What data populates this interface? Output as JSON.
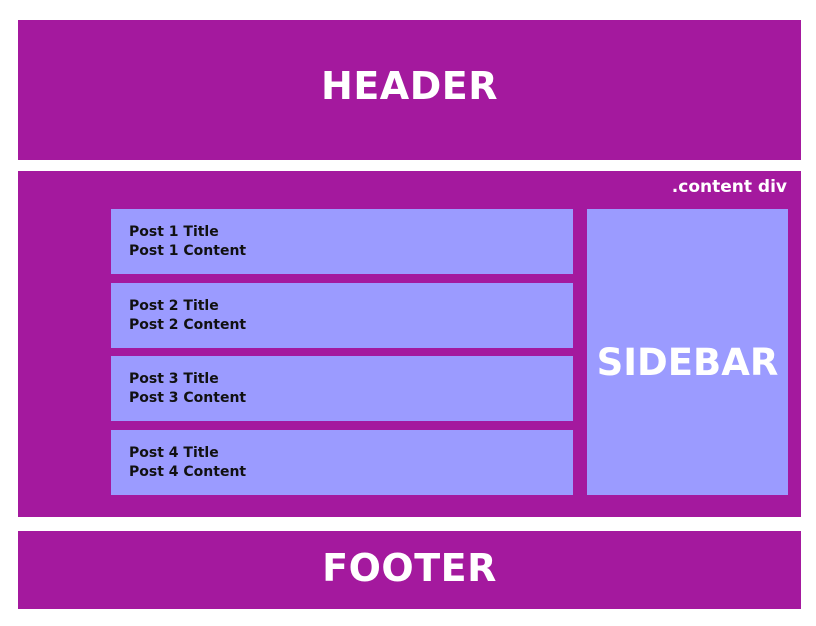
{
  "colors": {
    "block": "#a4199e",
    "inner": "#9b9bff",
    "text_light": "#ffffff",
    "text_dark": "#111111"
  },
  "header": {
    "label": "HEADER"
  },
  "content": {
    "label": ".content div",
    "posts": [
      {
        "title": "Post 1 Title",
        "content": "Post 1 Content"
      },
      {
        "title": "Post 2 Title",
        "content": "Post 2 Content"
      },
      {
        "title": "Post 3 Title",
        "content": "Post 3 Content"
      },
      {
        "title": "Post 4 Title",
        "content": "Post 4 Content"
      }
    ],
    "sidebar": {
      "label": "SIDEBAR"
    }
  },
  "footer": {
    "label": "FOOTER"
  }
}
